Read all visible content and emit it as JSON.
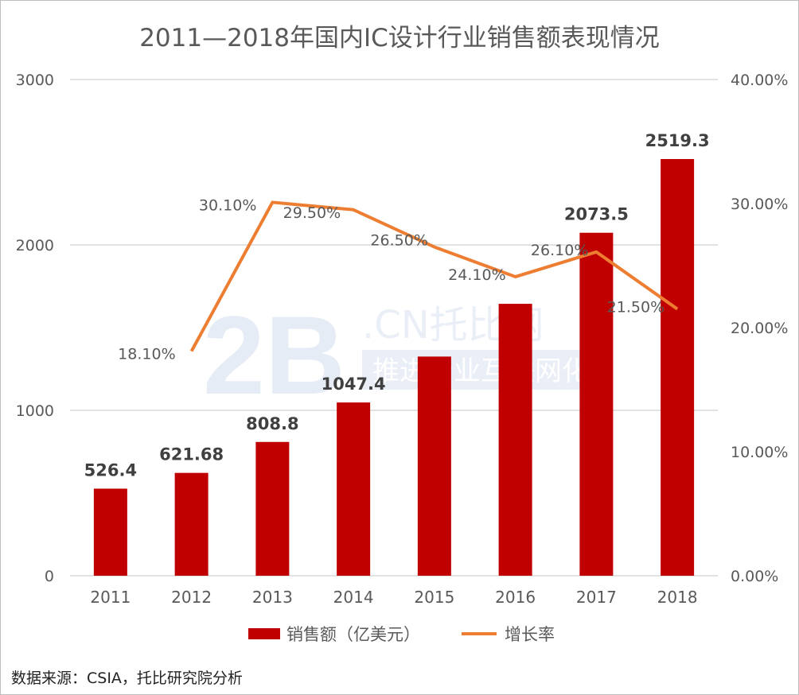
{
  "title": "2011—2018年国内IC设计行业销售额表现情况",
  "source": "数据来源：CSIA，托比研究院分析",
  "watermark": {
    "logo": "2B",
    "domain": ".CN托比网",
    "slogan": "推进产业互联网化"
  },
  "colors": {
    "bar": "#c00000",
    "line": "#ed7d31",
    "grid": "#d9d9d9",
    "axis_text": "#595959",
    "label_text": "#404040"
  },
  "chart_data": {
    "type": "bar",
    "title": "2011—2018年国内IC设计行业销售额表现情况",
    "categories": [
      "2011",
      "2012",
      "2013",
      "2014",
      "2015",
      "2016",
      "2017",
      "2018"
    ],
    "series": [
      {
        "name": "销售额（亿美元）",
        "type": "bar",
        "axis": "left",
        "values": [
          526.4,
          621.68,
          808.8,
          1047.4,
          1325,
          1644,
          2073.5,
          2519.3
        ],
        "data_labels": [
          "526.4",
          "621.68",
          "808.8",
          "1047.4",
          "",
          "",
          "2073.5",
          "2519.3"
        ]
      },
      {
        "name": "增长率",
        "type": "line",
        "axis": "right",
        "values": [
          null,
          18.1,
          30.1,
          29.5,
          26.5,
          24.1,
          26.1,
          21.5
        ],
        "data_labels": [
          "",
          "18.10%",
          "30.10%",
          "29.50%",
          "26.50%",
          "24.10%",
          "26.10%",
          "21.50%"
        ]
      }
    ],
    "left_axis": {
      "ylim": [
        0,
        3000
      ],
      "ticks": [
        "0",
        "1000",
        "2000",
        "3000"
      ]
    },
    "right_axis": {
      "ylim": [
        0,
        40
      ],
      "ticks": [
        "0.00%",
        "10.00%",
        "20.00%",
        "30.00%",
        "40.00%"
      ]
    },
    "grid": true,
    "legend": "bottom"
  }
}
